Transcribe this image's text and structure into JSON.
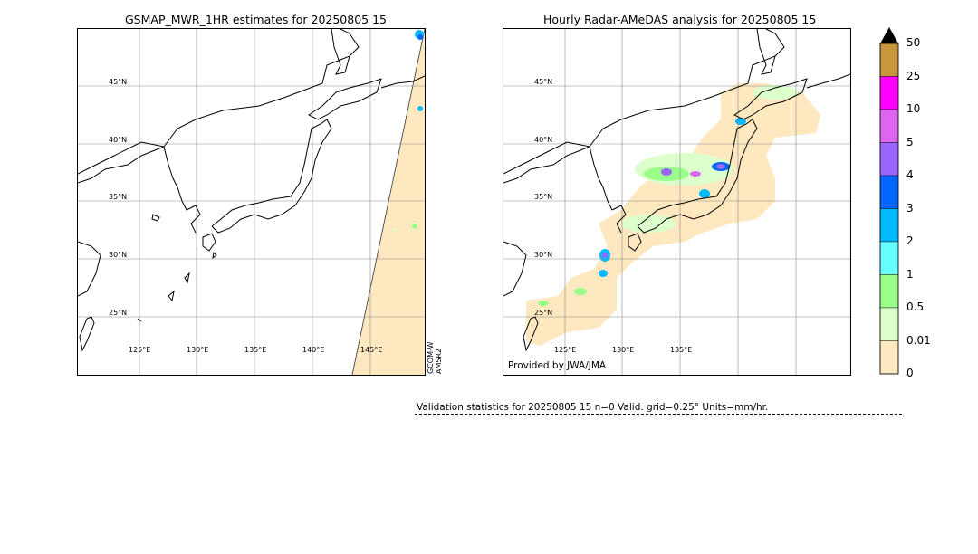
{
  "left_panel": {
    "title": "GSMAP_MWR_1HR estimates for 20250805 15",
    "lat_labels": [
      "45°N",
      "40°N",
      "35°N",
      "30°N",
      "25°N"
    ],
    "lon_labels": [
      "125°E",
      "130°E",
      "135°E",
      "140°E",
      "145°E"
    ],
    "satellite_labels": [
      "GCOM-W",
      "AMSR2"
    ]
  },
  "right_panel": {
    "title": "Hourly Radar-AMeDAS analysis for 20250805 15",
    "lat_labels": [
      "45°N",
      "40°N",
      "35°N",
      "30°N",
      "25°N"
    ],
    "lon_labels": [
      "125°E",
      "130°E",
      "135°E"
    ],
    "credit": "Provided by JWA/JMA"
  },
  "colorbar": {
    "labels": [
      "50",
      "25",
      "10",
      "5",
      "4",
      "3",
      "2",
      "1",
      "0.5",
      "0.01",
      "0"
    ],
    "colors": [
      "#c8963c",
      "#ff00ff",
      "#dd66ee",
      "#9966ff",
      "#0066ff",
      "#00bbff",
      "#66ffff",
      "#99ff88",
      "#ddffcc",
      "#fde8c0"
    ],
    "arrow_color": "#000000"
  },
  "footer": {
    "stats": "Validation statistics for 20250805 15  n=0 Valid. grid=0.25° Units=mm/hr."
  }
}
